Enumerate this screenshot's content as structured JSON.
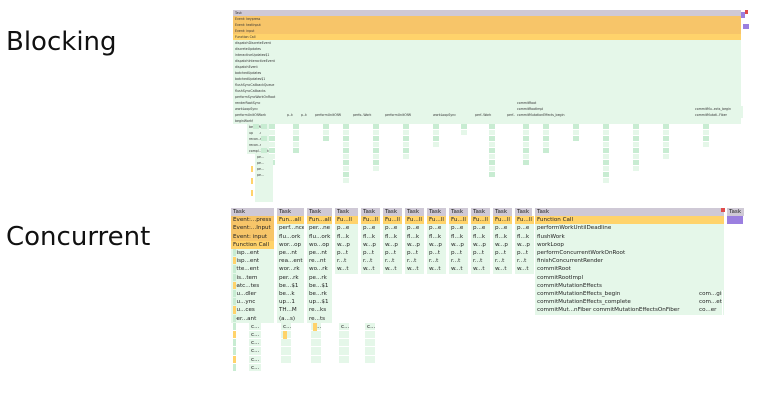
{
  "headings": {
    "top": "Blocking",
    "bottom": "Concurrent"
  },
  "colors": {
    "task_grey": "#cfc9d6",
    "event_orange": "#f7c569",
    "function_yellow": "#ffd36b",
    "green": "#e5f7e9",
    "green_dark": "#c8ecd2",
    "gc_purple": "#9b7fe0",
    "red_marker": "#e04b4b",
    "lavender": "#cdbcf0"
  },
  "blocking": {
    "rows": [
      "Task",
      "Event: keypress",
      "Event: textInput",
      "Event: input",
      "Function Call",
      "dispatchDiscreteEvent",
      "discreteUpdates",
      "interactiveUpdates$1",
      "dispatchInteractiveEvent",
      "dispatchEvent",
      "batchedUpdates",
      "batchedUpdates$1",
      "flushSyncCallbackQueue",
      "flushSyncCallbacks",
      "performSyncWorkOnRoot",
      "renderRootSync",
      "workLoopSync",
      "performUnitOfWork",
      "beginWork$1"
    ],
    "labels_row17": [
      "p..k",
      "p..k",
      "performUnitOfWork",
      "perfo..Work",
      "performUnitOfWork",
      "workLoopSync",
      "perf..Work",
      "perf..ork",
      "perfo..Work"
    ],
    "labels_row18": [
      "beginWork",
      "updat..ent",
      "recon..ren",
      "recon..ray",
      "compl..Work",
      "commitRoot",
      "commitRootImpl",
      "commitMutationEffects_begin",
      "commitMu..ects_begin",
      "commitMutati..Fiber"
    ]
  },
  "concurrent": {
    "task_label": "Task",
    "task_tail": "Task",
    "first_column": [
      "Event:...press",
      "Event:...Input",
      "Event: input",
      "Function Call",
      "disp...ent",
      "disp...ent",
      "atte...ent",
      "dis...tem",
      "batc...tes",
      "flu...dler",
      "flu...ync",
      "flu...ces",
      "per...ant"
    ],
    "column_labels": [
      [
        "Fun...all",
        "perf...nce",
        "flu...ork",
        "wor...op",
        "pe...nt",
        "rea...ent",
        "wor...rk",
        "per...rk",
        "be...$1",
        "be...k",
        "up...1",
        "TH...M",
        "(a...s)"
      ],
      [
        "Fun...all",
        "per...ne",
        "flu...ork",
        "wo...op",
        "pe...nt",
        "re...nt",
        "wo...rk",
        "pe...rk",
        "be...$1",
        "be...rk",
        "up...$1",
        "re...ks",
        "re...ts"
      ],
      [
        "Fu...ll",
        "p...e",
        "fl...k",
        "w...p",
        "p...t",
        "r...t",
        "w...t"
      ],
      [
        "Fu...ll",
        "p...e",
        "fl...k",
        "w...p",
        "p...t",
        "r...t",
        "w...t"
      ]
    ],
    "right_rows": [
      "Function Call",
      "performWorkUntilDeadline",
      "flushWork",
      "workLoop",
      "performConcurrentWorkOnRoot",
      "finishConcurrentRender",
      "commitRoot",
      "commitRootImpl",
      "commitMutationEffects",
      "commitMutationEffects_begin",
      "commitMutationEffects_complete",
      "commitMut...nFiber   commitMutationEffectsOnFiber"
    ],
    "right_extra": [
      "com...gin",
      "com...ete",
      "co...er"
    ]
  }
}
